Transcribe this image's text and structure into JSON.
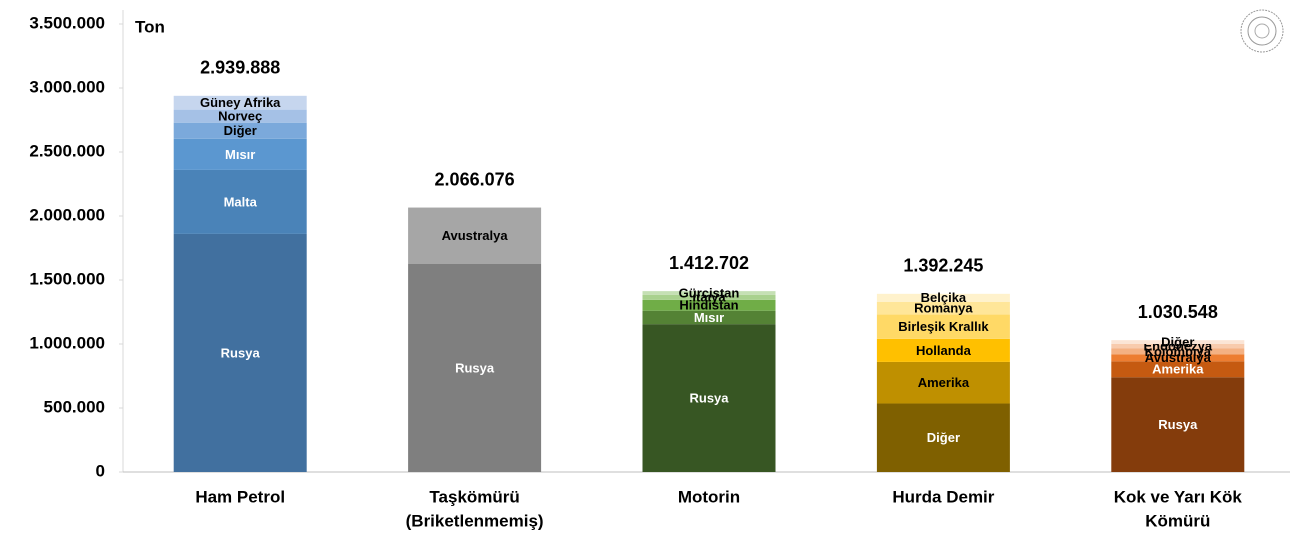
{
  "chart_data": {
    "type": "stacked-bar",
    "y_unit": "Ton",
    "ylim": [
      0,
      3500000
    ],
    "yticks": [
      0,
      {
        "value": 500000,
        "label": "500.000"
      },
      {
        "value": 1000000,
        "label": "1.000.000"
      },
      {
        "value": 1500000,
        "label": "1.500.000"
      },
      {
        "value": 2000000,
        "label": "2.000.000"
      },
      {
        "value": 2500000,
        "label": "2.500.000"
      },
      {
        "value": 3000000,
        "label": "3.000.000"
      },
      {
        "value": 3500000,
        "label": "3.500.000"
      }
    ],
    "bars": [
      {
        "category": [
          "Ham Petrol"
        ],
        "total": 2939888,
        "total_label": "2.939.888",
        "segments": [
          {
            "name": "Rusya",
            "value": 1860000,
            "color": "#41709f"
          },
          {
            "name": "Malta",
            "value": 500000,
            "color": "#4a83b8"
          },
          {
            "name": "Mısır",
            "value": 243000,
            "color": "#5b97d0"
          },
          {
            "name": "Diğer",
            "value": 126000,
            "color": "#7ba9db"
          },
          {
            "name": "Norveç",
            "value": 102000,
            "color": "#a5c1e6"
          },
          {
            "name": "Güney Afrika",
            "value": 108000,
            "color": "#c6d6ee"
          }
        ]
      },
      {
        "category": [
          "Taşkömürü",
          "(Briketlenmemiş)"
        ],
        "total": 2066076,
        "total_label": "2.066.076",
        "segments": [
          {
            "name": "Rusya",
            "value": 1625000,
            "color": "#7f7f7f"
          },
          {
            "name": "Avustralya",
            "value": 441000,
            "color": "#a6a6a6"
          }
        ]
      },
      {
        "category": [
          "Motorin"
        ],
        "total": 1412702,
        "total_label": "1.412.702",
        "segments": [
          {
            "name": "Rusya",
            "value": 1155000,
            "color": "#375623"
          },
          {
            "name": "Mısır",
            "value": 105000,
            "color": "#548235"
          },
          {
            "name": "Hindistan",
            "value": 85000,
            "color": "#70ad47"
          },
          {
            "name": "İtalya",
            "value": 40000,
            "color": "#a9d18e"
          },
          {
            "name": "Gürcistan",
            "value": 28000,
            "color": "#c5e0b4"
          }
        ]
      },
      {
        "category": [
          "Hurda Demir"
        ],
        "total": 1392245,
        "total_label": "1.392.245",
        "segments": [
          {
            "name": "Diğer",
            "value": 535000,
            "color": "#7f6000"
          },
          {
            "name": "Amerika",
            "value": 325000,
            "color": "#bf9000"
          },
          {
            "name": "Hollanda",
            "value": 180000,
            "color": "#ffc000"
          },
          {
            "name": "Birleşik Krallık",
            "value": 190000,
            "color": "#ffd966"
          },
          {
            "name": "Romanya",
            "value": 100000,
            "color": "#ffe699"
          },
          {
            "name": "Belçika",
            "value": 62000,
            "color": "#fff2cc"
          }
        ]
      },
      {
        "category": [
          "Kok ve Yarı Kök",
          "Kömürü"
        ],
        "total": 1030548,
        "total_label": "1.030.548",
        "segments": [
          {
            "name": "Rusya",
            "value": 740000,
            "color": "#843c0c"
          },
          {
            "name": "Amerika",
            "value": 125000,
            "color": "#c55a11"
          },
          {
            "name": "Avustralya",
            "value": 55000,
            "color": "#ed7d31"
          },
          {
            "name": "Kolombiya",
            "value": 45000,
            "color": "#f4b183"
          },
          {
            "name": "Endonezya",
            "value": 35000,
            "color": "#f8cbad"
          },
          {
            "name": "Diğer",
            "value": 30000,
            "color": "#fbe5d6"
          }
        ]
      }
    ]
  }
}
